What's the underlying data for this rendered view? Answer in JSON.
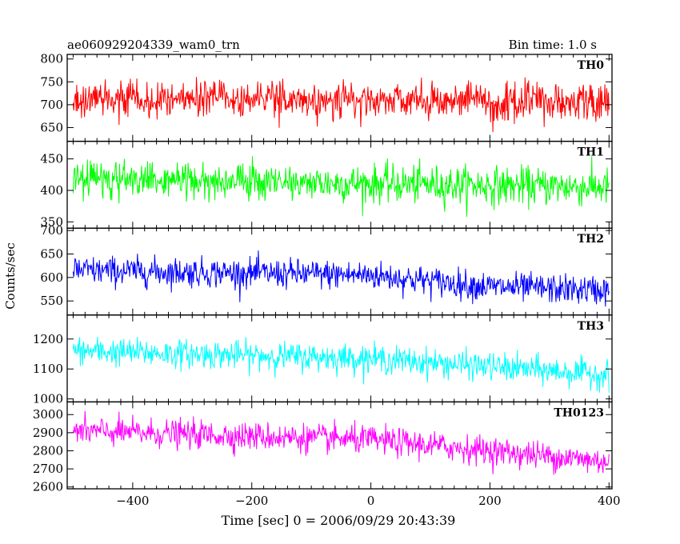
{
  "header": {
    "title": "ae060929204339_wam0_trn",
    "bin_time": "Bin time: 1.0 s"
  },
  "chart_data": {
    "type": "line",
    "xlabel": "Time [sec] 0 = 2006/09/29 20:43:39",
    "ylabel": "Counts/sec",
    "xlim": [
      -510,
      405
    ],
    "x_ticks": [
      -400,
      -200,
      0,
      200,
      400
    ],
    "x_start": -500,
    "x_end": 400,
    "x_step": 1,
    "panels": [
      {
        "name": "TH0",
        "color": "#ff0000",
        "ylim": [
          620,
          810
        ],
        "y_ticks": [
          650,
          700,
          750,
          800
        ],
        "trend": [
          [
            -500,
            715
          ],
          [
            400,
            705
          ]
        ],
        "amplitude": 38
      },
      {
        "name": "TH1",
        "color": "#00ff00",
        "ylim": [
          340,
          478
        ],
        "y_ticks": [
          350,
          400,
          450
        ],
        "trend": [
          [
            -500,
            418
          ],
          [
            400,
            405
          ]
        ],
        "amplitude": 27
      },
      {
        "name": "TH2",
        "color": "#0000ff",
        "ylim": [
          520,
          705
        ],
        "y_ticks": [
          550,
          600,
          650,
          700
        ],
        "trend": [
          [
            -500,
            615
          ],
          [
            0,
            605
          ],
          [
            200,
            580
          ],
          [
            400,
            572
          ]
        ],
        "amplitude": 28
      },
      {
        "name": "TH3",
        "color": "#00ffff",
        "ylim": [
          990,
          1280
        ],
        "y_ticks": [
          1000,
          1100,
          1200
        ],
        "trend": [
          [
            -500,
            1160
          ],
          [
            0,
            1135
          ],
          [
            400,
            1080
          ]
        ],
        "amplitude": 42
      },
      {
        "name": "TH0123",
        "color": "#ff00ff",
        "ylim": [
          2590,
          3070
        ],
        "y_ticks": [
          2600,
          2700,
          2800,
          2900,
          3000
        ],
        "trend": [
          [
            -500,
            2910
          ],
          [
            0,
            2860
          ],
          [
            400,
            2740
          ]
        ],
        "amplitude": 70
      }
    ]
  }
}
